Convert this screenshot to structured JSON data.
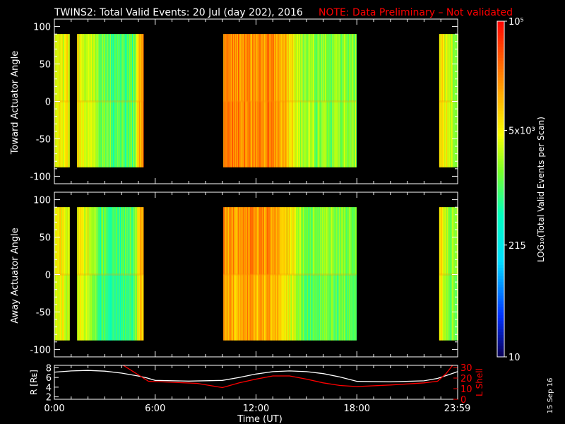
{
  "title": "TWINS2: Total Valid Events: 20 Jul (day 202), 2016",
  "note": "NOTE: Data Preliminary – Not validated",
  "footer_date": "15 Sep 16",
  "colors": {
    "background": "#000000",
    "note": "#ff0000",
    "r_line": "#ffffff",
    "lshell_line": "#ff0000"
  },
  "colorbar": {
    "label": "LOG₁₀(Total Valid Events per Scan)",
    "scale": "log",
    "range": [
      10,
      100000
    ],
    "ticks": [
      {
        "value": 100000,
        "label": "10⁵"
      },
      {
        "value": 5000,
        "label": "5x10³"
      },
      {
        "value": 215,
        "label": "215"
      },
      {
        "value": 10,
        "label": "10"
      }
    ]
  },
  "chart_data": [
    {
      "type": "heatmap",
      "panel": "toward",
      "ylabel": "Toward Actuator Angle",
      "ylim": [
        -110,
        110
      ],
      "yticks": [
        "100",
        "50",
        "0",
        "-50",
        "-100"
      ],
      "angle_range": [
        -88,
        90
      ],
      "xlim": [
        0,
        24
      ],
      "data_blocks_hours": [
        [
          -0.1,
          0.9
        ],
        [
          1.35,
          5.3
        ],
        [
          10.05,
          17.95
        ],
        [
          22.9,
          24.0
        ]
      ],
      "color_profile_hours": [
        [
          0.0,
          0.45
        ],
        [
          0.5,
          0.4
        ],
        [
          0.9,
          0.4
        ],
        [
          1.35,
          0.35
        ],
        [
          2.0,
          0.45
        ],
        [
          2.4,
          0.5
        ],
        [
          3.0,
          0.58
        ],
        [
          3.6,
          0.58
        ],
        [
          4.3,
          0.6
        ],
        [
          4.8,
          0.55
        ],
        [
          5.0,
          0.35
        ],
        [
          5.3,
          0.2
        ],
        [
          10.05,
          0.22
        ],
        [
          11.0,
          0.22
        ],
        [
          12.0,
          0.2
        ],
        [
          13.0,
          0.22
        ],
        [
          13.6,
          0.28
        ],
        [
          14.0,
          0.35
        ],
        [
          14.5,
          0.45
        ],
        [
          15.0,
          0.5
        ],
        [
          16.0,
          0.52
        ],
        [
          17.95,
          0.52
        ],
        [
          22.9,
          0.3
        ],
        [
          23.2,
          0.4
        ],
        [
          23.5,
          0.48
        ],
        [
          24.0,
          0.5
        ]
      ]
    },
    {
      "type": "heatmap",
      "panel": "away",
      "ylabel": "Away Actuator Angle",
      "ylim": [
        -110,
        110
      ],
      "yticks": [
        "100",
        "50",
        "0",
        "-50",
        "-100"
      ],
      "angle_range": [
        -88,
        90
      ],
      "xlim": [
        0,
        24
      ],
      "data_blocks_hours": [
        [
          -0.1,
          0.9
        ],
        [
          1.35,
          5.3
        ],
        [
          10.05,
          17.95
        ],
        [
          22.9,
          24.0
        ]
      ],
      "color_profile_hours": [
        [
          0.0,
          0.42
        ],
        [
          0.5,
          0.38
        ],
        [
          0.9,
          0.4
        ],
        [
          1.35,
          0.35
        ],
        [
          2.0,
          0.45
        ],
        [
          2.4,
          0.52
        ],
        [
          3.0,
          0.6
        ],
        [
          3.6,
          0.62
        ],
        [
          4.3,
          0.58
        ],
        [
          4.8,
          0.55
        ],
        [
          5.0,
          0.35
        ],
        [
          5.3,
          0.22
        ],
        [
          10.05,
          0.24
        ],
        [
          11.0,
          0.24
        ],
        [
          12.0,
          0.23
        ],
        [
          13.0,
          0.25
        ],
        [
          13.6,
          0.3
        ],
        [
          14.0,
          0.38
        ],
        [
          14.5,
          0.48
        ],
        [
          15.0,
          0.55
        ],
        [
          16.0,
          0.52
        ],
        [
          17.95,
          0.52
        ],
        [
          22.9,
          0.3
        ],
        [
          23.2,
          0.42
        ],
        [
          23.5,
          0.5
        ],
        [
          24.0,
          0.5
        ]
      ]
    },
    {
      "type": "line",
      "panel": "orbit",
      "xlabel": "Time (UT)",
      "xlim": [
        0,
        24
      ],
      "xticks": [
        {
          "value": 0,
          "label": "0:00"
        },
        {
          "value": 6,
          "label": "6:00"
        },
        {
          "value": 12,
          "label": "12:00"
        },
        {
          "value": 18,
          "label": "18:00"
        },
        {
          "value": 23.98,
          "label": "23:59"
        }
      ],
      "left_axis": {
        "label": "R [Rᴇ]",
        "ylim": [
          1.5,
          8.5
        ],
        "ticks": [
          "8",
          "6",
          "4",
          "2"
        ]
      },
      "right_axis": {
        "label": "L Shell",
        "ylim": [
          0,
          32
        ],
        "ticks": [
          "30",
          "20",
          "10",
          "0"
        ]
      },
      "series": [
        {
          "name": "R [Rᴇ]",
          "axis": "left",
          "x": [
            0,
            1,
            2,
            3,
            4,
            5,
            5.5,
            6,
            8,
            10,
            11,
            12,
            13,
            14,
            15,
            16,
            17,
            18,
            20,
            22,
            22.8,
            23.5,
            24
          ],
          "y": [
            7.1,
            7.35,
            7.45,
            7.3,
            6.9,
            6.3,
            5.9,
            5.4,
            5.25,
            5.4,
            6.0,
            6.7,
            7.2,
            7.35,
            7.2,
            6.8,
            6.1,
            5.2,
            5.1,
            5.3,
            5.8,
            6.6,
            7.2
          ]
        },
        {
          "name": "L Shell",
          "axis": "right",
          "x": [
            4.1,
            5.0,
            5.6,
            7.0,
            8.5,
            10.0,
            11.0,
            12.0,
            13.0,
            14.0,
            15.0,
            16.0,
            17.0,
            18.0,
            20.0,
            22.0,
            22.8,
            23.3,
            23.7
          ],
          "y": [
            32,
            23,
            17,
            16,
            15,
            11,
            15.5,
            19,
            22,
            22,
            19,
            15.5,
            13,
            12,
            13.5,
            15.5,
            17,
            24,
            32
          ]
        }
      ]
    }
  ]
}
